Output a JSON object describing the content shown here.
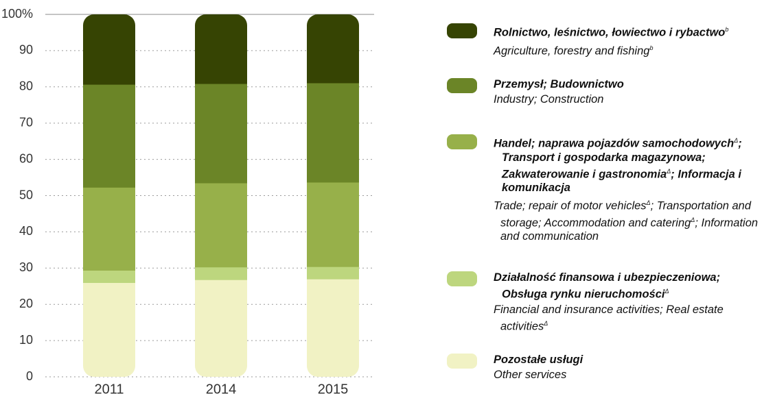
{
  "chart_data": {
    "type": "stacked_bar",
    "categories": [
      "2011",
      "2014",
      "2015"
    ],
    "ylim": [
      0,
      100
    ],
    "yticks": [
      0,
      10,
      20,
      30,
      40,
      50,
      60,
      70,
      80,
      90,
      {
        "value": 100,
        "label": "100%"
      }
    ],
    "grid": true,
    "series": [
      {
        "name": [
          {
            "text": "Pozostałe usługi"
          }
        ],
        "name_en": [
          {
            "text": "Other services"
          }
        ],
        "color": "#f1f2c4",
        "values": [
          26,
          26.8,
          27
        ]
      },
      {
        "name": [
          {
            "text": "Działalność finansowa i ubezpieczeniowa; Obsługa rynku nieruchomości"
          },
          {
            "sup": "Δ"
          }
        ],
        "name_en": [
          {
            "text": "Financial and insurance activities; Real estate activities"
          },
          {
            "sup": "Δ"
          }
        ],
        "color": "#bdd67e",
        "values": [
          3.4,
          3.5,
          3.4
        ]
      },
      {
        "name": [
          {
            "text": "Handel; naprawa pojazdów samochodowych"
          },
          {
            "sup": "Δ"
          },
          {
            "text": "; Transport i gospodarka magazynowa; Zakwaterowanie i gastronomia"
          },
          {
            "sup": "Δ"
          },
          {
            "text": "; Informacja i komunikacja"
          }
        ],
        "name_en": [
          {
            "text": "Trade; repair of motor vehicles"
          },
          {
            "sup": "Δ"
          },
          {
            "text": "; Transportation and storage; Accommodation and catering"
          },
          {
            "sup": "Δ"
          },
          {
            "text": "; Information and communication"
          }
        ],
        "color": "#97b04a",
        "values": [
          22.9,
          23.2,
          23.3
        ]
      },
      {
        "name": [
          {
            "text": "Przemysł; Budownictwo"
          }
        ],
        "name_en": [
          {
            "text": "Industry; Construction"
          }
        ],
        "color": "#6b8527",
        "values": [
          28.4,
          27.4,
          27.4
        ]
      },
      {
        "name": [
          {
            "text": "Rolnictwo, leśnictwo, łowiectwo i rybactwo"
          },
          {
            "sup": "b"
          }
        ],
        "name_en": [
          {
            "text": "Agriculture, forestry and fishing"
          },
          {
            "sup": "b"
          }
        ],
        "color": "#364403",
        "values": [
          19.3,
          19.1,
          18.9
        ]
      }
    ]
  }
}
